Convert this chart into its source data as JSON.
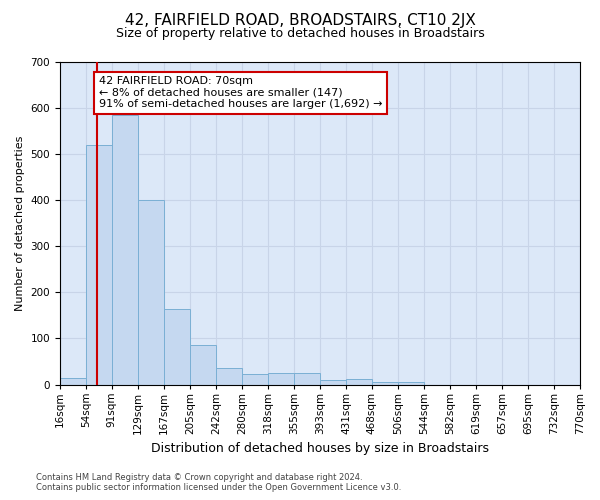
{
  "title": "42, FAIRFIELD ROAD, BROADSTAIRS, CT10 2JX",
  "subtitle": "Size of property relative to detached houses in Broadstairs",
  "xlabel": "Distribution of detached houses by size in Broadstairs",
  "ylabel": "Number of detached properties",
  "bin_edges": [
    16,
    54,
    91,
    129,
    167,
    205,
    242,
    280,
    318,
    355,
    393,
    431,
    468,
    506,
    544,
    582,
    619,
    657,
    695,
    732,
    770
  ],
  "bar_heights": [
    15,
    520,
    585,
    400,
    163,
    85,
    35,
    22,
    25,
    25,
    10,
    13,
    5,
    5,
    0,
    0,
    0,
    0,
    0,
    0
  ],
  "bar_color": "#c5d8f0",
  "bar_edge_color": "#7aafd4",
  "property_line_x": 70,
  "property_line_color": "#cc0000",
  "annotation_text": "42 FAIRFIELD ROAD: 70sqm\n← 8% of detached houses are smaller (147)\n91% of semi-detached houses are larger (1,692) →",
  "annotation_box_facecolor": "#ffffff",
  "annotation_box_edgecolor": "#cc0000",
  "ylim": [
    0,
    700
  ],
  "yticks": [
    0,
    100,
    200,
    300,
    400,
    500,
    600,
    700
  ],
  "grid_color": "#c8d4e8",
  "plot_bg_color": "#dce8f8",
  "fig_bg_color": "#ffffff",
  "title_fontsize": 11,
  "subtitle_fontsize": 9,
  "xlabel_fontsize": 9,
  "ylabel_fontsize": 8,
  "tick_fontsize": 7.5,
  "footer_line1": "Contains HM Land Registry data © Crown copyright and database right 2024.",
  "footer_line2": "Contains public sector information licensed under the Open Government Licence v3.0."
}
